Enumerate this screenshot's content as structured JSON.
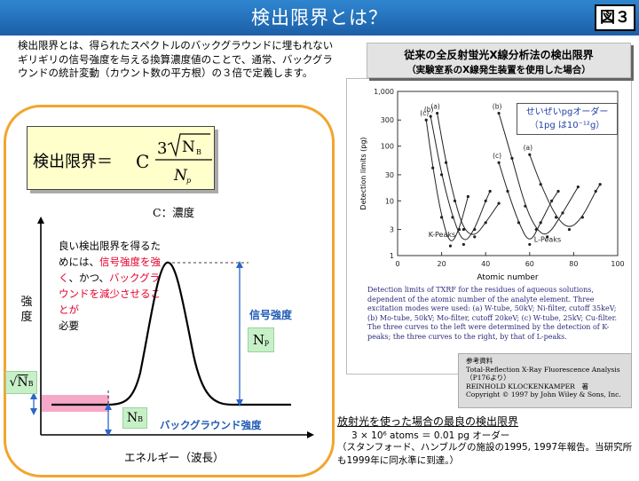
{
  "header": {
    "title": "検出限界とは？",
    "figure_label": "図３",
    "background_color": "#2171bd"
  },
  "intro": {
    "text": "検出限界とは、得られたスペクトルのバックグラウンドに埋もれないギリギリの信号強度を与える換算濃度値のことで、通常、バックグラウンドの統計変動（カウント数の平方根）の３倍で定義します。"
  },
  "formula": {
    "label": "検出限界＝",
    "constant": "C",
    "numerator_coef": "3",
    "numerator_var": "N",
    "numerator_sub": "B",
    "denominator_var": "N",
    "denominator_sub": "p",
    "note": "C：濃度"
  },
  "diagram": {
    "good_text_1": "良い検出限界を得るためには、",
    "good_text_red_1": "信号強度を強く",
    "good_text_2": "、かつ、",
    "good_text_red_2": "バックグラウンドを減少させることが",
    "good_text_3": "必要",
    "y_axis_label": "強度",
    "x_axis_label": "エネルギー（波長）",
    "signal_label": "信号強度",
    "background_label": "バックグラウンド強度",
    "np_var": "N",
    "np_sub": "p",
    "nb_var": "N",
    "nb_sub": "B",
    "sqrt_var": "N",
    "sqrt_sub": "B",
    "accent_color": "#f2a52d",
    "label_color": "#1f5bb5",
    "highlight_color": "#e4002b"
  },
  "right_panel": {
    "title_1": "従来の全反射蛍光X線分析法の検出限界",
    "title_2": "（実験室系のX線発生装置を使用した場合）",
    "annotation_1": "せいぜいpgオーダー",
    "annotation_2": "（1pg は10⁻¹²g）",
    "caption": "Detection limits of TXRF for the residues of aqueous solutions, dependent of the atomic number of the analyte element. Three excitation modes were used: (a) W-tube, 50kV; Ni-filter, cutoff 35keV; (b) Mo-tube, 50kV; Mo-filter, cutoff 20keV; (c) W-tube, 25kV; Cu-filter. The three curves to the left were determined by the detection of K-peaks; the three curves to the right, by that of L-peaks.",
    "reference": {
      "heading": "参考資料",
      "line_1": "Total-Reflection X-Ray Fluorescence Analysis",
      "line_2": "（P176より）",
      "line_3": "REINHOLD KLOCKENKAMPER　著",
      "line_4": "Copyright © 1997 by John Wiley & Sons, Inc."
    }
  },
  "chart_data": {
    "type": "line",
    "title": "",
    "xlabel": "Atomic number",
    "ylabel": "Detection limits (pg)",
    "xlim": [
      0,
      100
    ],
    "ylim": [
      1,
      1000
    ],
    "y_scale": "log",
    "x_ticks": [
      "0",
      "20",
      "40",
      "60",
      "80",
      "100"
    ],
    "y_ticks": [
      "1",
      "3",
      "10",
      "30",
      "100",
      "300",
      "1,000"
    ],
    "grid": false,
    "group_labels": [
      "K-Peaks",
      "L-Peaks"
    ],
    "series": [
      {
        "name": "(c)",
        "group": "K",
        "x": [
          13,
          16,
          20,
          24,
          28,
          32
        ],
        "y": [
          300,
          40,
          5,
          1.5,
          3,
          12
        ]
      },
      {
        "name": "(b)",
        "group": "K",
        "x": [
          15,
          20,
          25,
          30,
          35,
          40,
          42
        ],
        "y": [
          350,
          30,
          5,
          1.6,
          3,
          10,
          15
        ]
      },
      {
        "name": "(a)",
        "group": "K",
        "x": [
          18,
          22,
          26,
          30,
          35,
          40,
          46
        ],
        "y": [
          400,
          50,
          10,
          3,
          2.2,
          4,
          9
        ]
      },
      {
        "name": "(c)",
        "group": "L",
        "x": [
          46,
          50,
          55,
          60,
          65,
          70,
          73
        ],
        "y": [
          50,
          15,
          4,
          1.6,
          4,
          10,
          15
        ]
      },
      {
        "name": "(b)",
        "group": "L",
        "x": [
          46,
          52,
          58,
          63,
          68,
          75,
          82
        ],
        "y": [
          400,
          60,
          8,
          3,
          2.2,
          6,
          18
        ]
      },
      {
        "name": "(a)",
        "group": "L",
        "x": [
          60,
          65,
          72,
          78,
          84,
          90,
          92
        ],
        "y": [
          70,
          20,
          5,
          3,
          5,
          15,
          20
        ]
      }
    ]
  },
  "bottom": {
    "title": "放射光を使った場合の最良の検出限界",
    "value": "3 × 10⁶ atoms ＝ 0.01 pg オーダー",
    "note": "（スタンフォード、ハンブルグの施設の1995, 1997年報告。当研究所も1999年に同水準に到達。）"
  }
}
